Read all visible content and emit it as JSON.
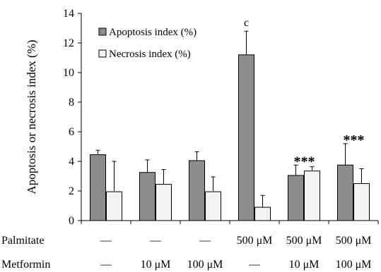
{
  "chart_data": {
    "type": "bar",
    "ylabel": "Apoptosis or necrosis index (%)",
    "ylim": [
      0,
      14
    ],
    "yticks": [
      0,
      2,
      4,
      6,
      8,
      10,
      12,
      14
    ],
    "legend": {
      "placement": "top-left"
    },
    "series": [
      {
        "name": "Apoptosis index (%)",
        "color": "#8c8c8c",
        "values": [
          4.45,
          3.25,
          4.05,
          11.2,
          3.05,
          3.75
        ],
        "errors": [
          0.3,
          0.85,
          0.6,
          1.6,
          0.7,
          1.45
        ]
      },
      {
        "name": "Necrosis index (%)",
        "color": "#f2f2f2",
        "values": [
          1.95,
          2.45,
          1.95,
          0.9,
          3.35,
          2.5
        ],
        "errors": [
          2.05,
          1.0,
          1.0,
          0.8,
          0.3,
          1.0
        ]
      }
    ],
    "annotations": [
      "",
      "",
      "",
      "c",
      "***",
      "***"
    ],
    "conditions": [
      {
        "label": "Palmitate",
        "values": [
          "—",
          "—",
          "—",
          "500 μM",
          "500 μM",
          "500 μM"
        ]
      },
      {
        "label": "Metformin",
        "values": [
          "—",
          "10 μM",
          "100 μM",
          "—",
          "10 μM",
          "100 μM"
        ]
      }
    ]
  }
}
